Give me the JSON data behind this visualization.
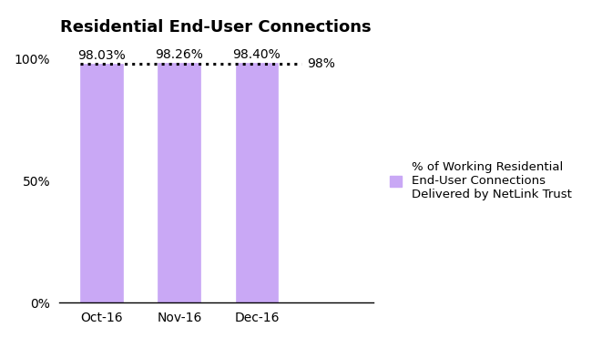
{
  "title": "Residential End-User Connections",
  "categories": [
    "Oct-16",
    "Nov-16",
    "Dec-16"
  ],
  "values": [
    98.03,
    98.26,
    98.4
  ],
  "bar_labels": [
    "98.03%",
    "98.26%",
    "98.40%"
  ],
  "bar_color": "#C9A8F5",
  "bar_edgecolor": "#C9A8F5",
  "ylim": [
    0,
    107
  ],
  "yticks": [
    0,
    50,
    100
  ],
  "ytick_labels": [
    "0%",
    "50%",
    "100%"
  ],
  "reference_line_y": 98,
  "reference_line_label": "98%",
  "legend_label": "% of Working Residential\nEnd-User Connections\nDelivered by NetLink Trust",
  "title_fontsize": 13,
  "label_fontsize": 10,
  "tick_fontsize": 10,
  "legend_fontsize": 9.5,
  "background_color": "#ffffff",
  "bar_width": 0.55,
  "xlim_left": -0.55,
  "xlim_right": 3.5
}
